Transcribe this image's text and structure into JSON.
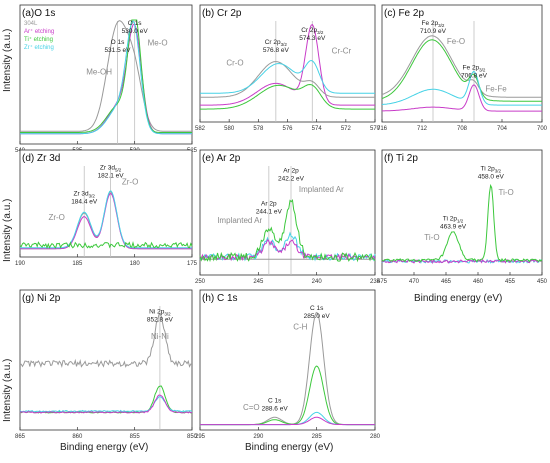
{
  "figure": {
    "ylabel": "Intensity (a.u.)",
    "xlabel": "Binding energy (eV)"
  },
  "colors": {
    "s304L": "#9a9a9a",
    "ar": "#c83cc8",
    "ti": "#3cc83c",
    "zr": "#46d2e6",
    "guide": "#c0c0c0",
    "text": "#222222",
    "label": "#8a8a8a"
  },
  "chart_data": [
    {
      "panel": "a",
      "type": "line",
      "title": "(a)O 1s",
      "xlim": [
        540,
        525
      ],
      "xticks": [
        "540",
        "535",
        "530",
        "525"
      ],
      "legend": [
        "304L",
        "Ar⁺ etching",
        "Ti⁺ etching",
        "Zr⁺ etching"
      ],
      "guides": [
        531.5,
        530.0
      ],
      "annotations": [
        {
          "text": "O 1s",
          "line2": "531.5 eV",
          "x": 531.5,
          "y": 0.8,
          "color": "text"
        },
        {
          "text": "O 1s",
          "line2": "530.0 eV",
          "x": 530.0,
          "y": 0.96,
          "color": "text"
        },
        {
          "text": "Me-OH",
          "x": 533.1,
          "y": 0.55,
          "color": "label"
        },
        {
          "text": "Me-O",
          "x": 528.0,
          "y": 0.79,
          "color": "label"
        }
      ],
      "series": [
        {
          "color": "s304L",
          "base": 0.08,
          "peaks": [
            [
              531.5,
              0.86,
              0.9
            ],
            [
              530.0,
              0.42,
              0.7
            ]
          ]
        },
        {
          "color": "ar",
          "base": 0.06,
          "peaks": [
            [
              531.3,
              0.24,
              1.0
            ],
            [
              530.0,
              0.8,
              0.6
            ]
          ]
        },
        {
          "color": "ti",
          "base": 0.07,
          "peaks": [
            [
              531.4,
              0.22,
              1.0
            ],
            [
              530.0,
              0.92,
              0.55
            ]
          ]
        },
        {
          "color": "zr",
          "base": 0.06,
          "peaks": [
            [
              531.3,
              0.22,
              1.0
            ],
            [
              530.1,
              0.82,
              0.6
            ]
          ]
        }
      ]
    },
    {
      "panel": "b",
      "type": "line",
      "title": "(b) Cr 2p",
      "xlim": [
        582,
        570
      ],
      "xticks": [
        "582",
        "580",
        "578",
        "576",
        "574",
        "572",
        "570"
      ],
      "legend": [],
      "guides": [
        576.8,
        574.3
      ],
      "annotations": [
        {
          "text": "Cr 2p3/2",
          "line2": "576.8 eV",
          "x": 576.8,
          "y": 0.76,
          "color": "text"
        },
        {
          "text": "Cr 2p3/2",
          "line2": "574.3 eV",
          "x": 574.3,
          "y": 0.88,
          "color": "text"
        },
        {
          "text": "Cr-O",
          "x": 579.6,
          "y": 0.54,
          "color": "label"
        },
        {
          "text": "Cr-Cr",
          "x": 572.3,
          "y": 0.66,
          "color": "label"
        }
      ],
      "series": [
        {
          "color": "ar",
          "base": 0.14,
          "peaks": [
            [
              576.8,
              0.22,
              1.3
            ],
            [
              574.3,
              0.78,
              0.45
            ]
          ]
        },
        {
          "color": "s304L",
          "base": 0.22,
          "peaks": [
            [
              576.8,
              0.36,
              1.2
            ],
            [
              574.3,
              0.12,
              0.5
            ]
          ]
        },
        {
          "color": "zr",
          "base": 0.26,
          "peaks": [
            [
              576.6,
              0.3,
              1.2
            ],
            [
              574.3,
              0.28,
              0.5
            ]
          ]
        },
        {
          "color": "ti",
          "base": 0.1,
          "peaks": [
            [
              576.6,
              0.24,
              1.4
            ],
            [
              574.3,
              0.18,
              0.6
            ]
          ]
        }
      ]
    },
    {
      "panel": "c",
      "type": "line",
      "title": "(c) Fe 2p",
      "xlim": [
        716,
        700
      ],
      "xticks": [
        "716",
        "712",
        "708",
        "704",
        "700"
      ],
      "legend": [],
      "guides": [
        710.9,
        706.8
      ],
      "annotations": [
        {
          "text": "Fe 2p3/2",
          "line2": "710.9 eV",
          "x": 710.9,
          "y": 0.95,
          "color": "text"
        },
        {
          "text": "Fe 2p3/2",
          "line2": "706.8 eV",
          "x": 706.8,
          "y": 0.5,
          "color": "text"
        },
        {
          "text": "Fe-O",
          "x": 708.6,
          "y": 0.76,
          "color": "label"
        },
        {
          "text": "Fe-Fe",
          "x": 704.6,
          "y": 0.28,
          "color": "label"
        }
      ],
      "series": [
        {
          "color": "s304L",
          "base": 0.22,
          "peaks": [
            [
              711.0,
              0.62,
              2.0
            ],
            [
              706.8,
              0.1,
              0.5
            ]
          ]
        },
        {
          "color": "ti",
          "base": 0.18,
          "peaks": [
            [
              711.0,
              0.62,
              2.0
            ],
            [
              706.8,
              0.2,
              0.5
            ]
          ]
        },
        {
          "color": "zr",
          "base": 0.14,
          "peaks": [
            [
              710.9,
              0.16,
              2.0
            ],
            [
              706.8,
              0.32,
              0.5
            ]
          ]
        },
        {
          "color": "ar",
          "base": 0.08,
          "peaks": [
            [
              710.9,
              0.04,
              2.0
            ],
            [
              706.8,
              0.26,
              0.5
            ]
          ]
        }
      ]
    },
    {
      "panel": "d",
      "type": "line",
      "title": "(d) Zr 3d",
      "xlim": [
        190,
        175
      ],
      "xticks": [
        "190",
        "185",
        "180",
        "175"
      ],
      "legend": [],
      "guides": [
        184.4,
        182.1
      ],
      "annotations": [
        {
          "text": "Zr 3d5/2",
          "line2": "182.1 eV",
          "x": 182.1,
          "y": 0.95,
          "color": "text"
        },
        {
          "text": "Zr 3d3/2",
          "line2": "184.4 eV",
          "x": 184.4,
          "y": 0.66,
          "color": "text"
        },
        {
          "text": "Zr-O",
          "x": 180.4,
          "y": 0.78,
          "color": "label"
        },
        {
          "text": "Zr-O",
          "x": 186.8,
          "y": 0.38,
          "color": "label"
        }
      ],
      "series": [
        {
          "color": "s304L",
          "base": 0.06,
          "peaks": [
            [
              184.4,
              0.4,
              0.6
            ],
            [
              182.1,
              0.64,
              0.55
            ]
          ]
        },
        {
          "color": "ar",
          "base": 0.06,
          "peaks": [
            [
              184.4,
              0.36,
              0.6
            ],
            [
              182.1,
              0.62,
              0.55
            ]
          ]
        },
        {
          "color": "zr",
          "base": 0.07,
          "peaks": [
            [
              184.4,
              0.4,
              0.6
            ],
            [
              182.1,
              0.64,
              0.55
            ]
          ]
        },
        {
          "color": "ti",
          "base": 0.1,
          "noise": 0.06,
          "peaks": []
        }
      ]
    },
    {
      "panel": "e",
      "type": "line",
      "title": "(e) Ar 2p",
      "xlim": [
        250,
        235
      ],
      "xticks": [
        "250",
        "245",
        "240",
        "235"
      ],
      "legend": [],
      "guides": [
        244.1,
        242.2
      ],
      "annotations": [
        {
          "text": "Ar 2p",
          "line2": "242.2 eV",
          "x": 242.2,
          "y": 0.93,
          "color": "text"
        },
        {
          "text": "Ar 2p",
          "line2": "244.1 eV",
          "x": 244.1,
          "y": 0.62,
          "color": "text"
        },
        {
          "text": "Implanted Ar",
          "x": 239.6,
          "y": 0.75,
          "color": "label"
        },
        {
          "text": "Implanted Ar",
          "x": 246.6,
          "y": 0.46,
          "color": "label"
        }
      ],
      "series": [
        {
          "color": "s304L",
          "base": 0.12,
          "peaks": []
        },
        {
          "color": "zr",
          "base": 0.14,
          "noise": 0.06,
          "peaks": [
            [
              244.1,
              0.16,
              0.5
            ],
            [
              242.2,
              0.22,
              0.5
            ]
          ]
        },
        {
          "color": "ar",
          "base": 0.14,
          "noise": 0.05,
          "peaks": [
            [
              244.1,
              0.14,
              0.5
            ],
            [
              242.2,
              0.14,
              0.5
            ]
          ]
        },
        {
          "color": "ti",
          "base": 0.14,
          "noise": 0.08,
          "peaks": [
            [
              244.1,
              0.28,
              0.5
            ],
            [
              242.2,
              0.52,
              0.5
            ]
          ]
        }
      ]
    },
    {
      "panel": "f",
      "type": "line",
      "title": "(f) Ti 2p",
      "xlim": [
        475,
        450
      ],
      "xticks": [
        "475",
        "470",
        "465",
        "460",
        "455",
        "450"
      ],
      "legend": [],
      "guides": [],
      "annotations": [
        {
          "text": "Ti 2p3/2",
          "line2": "458.0 eV",
          "x": 458.0,
          "y": 0.95,
          "color": "text"
        },
        {
          "text": "Ti 2p1/2",
          "line2": "463.9 eV",
          "x": 463.9,
          "y": 0.48,
          "color": "text"
        },
        {
          "text": "Ti-O",
          "x": 455.6,
          "y": 0.72,
          "color": "label"
        },
        {
          "text": "Ti-O",
          "x": 467.2,
          "y": 0.3,
          "color": "label"
        }
      ],
      "series": [
        {
          "color": "zr",
          "base": 0.1,
          "noise": 0.03,
          "peaks": []
        },
        {
          "color": "ar",
          "base": 0.1,
          "noise": 0.03,
          "peaks": []
        },
        {
          "color": "ti",
          "base": 0.11,
          "noise": 0.025,
          "peaks": [
            [
              463.9,
              0.26,
              0.9
            ],
            [
              458.0,
              0.7,
              0.45
            ]
          ]
        }
      ]
    },
    {
      "panel": "g",
      "type": "line",
      "title": "(g) Ni 2p",
      "xlim": [
        865,
        850
      ],
      "xticks": [
        "865",
        "860",
        "855",
        "850"
      ],
      "legend": [],
      "guides": [
        852.8
      ],
      "annotations": [
        {
          "text": "Ni 2p3/2",
          "line2": "852.8 eV",
          "x": 852.8,
          "y": 0.93,
          "color": "text"
        },
        {
          "text": "Ni-Ni",
          "x": 852.8,
          "y": 0.72,
          "color": "label"
        }
      ],
      "series": [
        {
          "color": "s304L",
          "base": 0.52,
          "noise": 0.05,
          "peaks": [
            [
              852.8,
              0.4,
              0.45
            ]
          ]
        },
        {
          "color": "ti",
          "base": 0.12,
          "noise": 0.01,
          "peaks": [
            [
              852.8,
              0.22,
              0.45
            ]
          ]
        },
        {
          "color": "zr",
          "base": 0.13,
          "noise": 0.01,
          "peaks": [
            [
              852.8,
              0.12,
              0.45
            ]
          ]
        },
        {
          "color": "ar",
          "base": 0.12,
          "noise": 0.01,
          "peaks": [
            [
              852.8,
              0.14,
              0.45
            ]
          ]
        }
      ]
    },
    {
      "panel": "h",
      "type": "line",
      "title": "(h) C 1s",
      "xlim": [
        295,
        280
      ],
      "xticks": [
        "295",
        "290",
        "285",
        "280"
      ],
      "legend": [],
      "guides": [],
      "annotations": [
        {
          "text": "C 1s",
          "line2": "285.0 eV",
          "x": 285.0,
          "y": 0.96,
          "color": "text"
        },
        {
          "text": "C 1s",
          "line2": "288.6 eV",
          "x": 288.6,
          "y": 0.2,
          "color": "text"
        },
        {
          "text": "C-H",
          "x": 286.4,
          "y": 0.8,
          "color": "label"
        },
        {
          "text": "C=O",
          "x": 290.6,
          "y": 0.14,
          "color": "label"
        }
      ],
      "series": [
        {
          "color": "s304L",
          "base": 0.02,
          "peaks": [
            [
              285.0,
              0.92,
              0.6
            ],
            [
              288.6,
              0.06,
              0.6
            ]
          ]
        },
        {
          "color": "ti",
          "base": 0.02,
          "peaks": [
            [
              285.0,
              0.48,
              0.6
            ],
            [
              288.6,
              0.04,
              0.6
            ]
          ]
        },
        {
          "color": "zr",
          "base": 0.02,
          "peaks": [
            [
              285.0,
              0.1,
              0.6
            ]
          ]
        },
        {
          "color": "ar",
          "base": 0.02,
          "peaks": [
            [
              285.0,
              0.06,
              0.6
            ]
          ]
        }
      ]
    }
  ]
}
